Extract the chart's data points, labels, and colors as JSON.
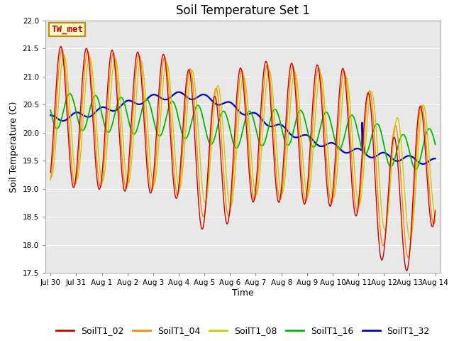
{
  "title": "Soil Temperature Set 1",
  "xlabel": "Time",
  "ylabel": "Soil Temperature (C)",
  "ylim": [
    17.5,
    22.0
  ],
  "series_colors": {
    "SoilT1_02": "#cc0000",
    "SoilT1_04": "#ff8800",
    "SoilT1_08": "#cccc00",
    "SoilT1_16": "#00bb00",
    "SoilT1_32": "#0000cc"
  },
  "series_linewidths": {
    "SoilT1_02": 1.0,
    "SoilT1_04": 1.0,
    "SoilT1_08": 1.0,
    "SoilT1_16": 1.3,
    "SoilT1_32": 1.6
  },
  "annotation_text": "TW_met",
  "annotation_color": "#cc0000",
  "annotation_bg": "#ffffcc",
  "annotation_border": "#cc8800",
  "x_tick_labels": [
    "Jul 30",
    "Jul 31",
    "Aug 1",
    "Aug 2",
    "Aug 3",
    "Aug 4",
    "Aug 5",
    "Aug 6",
    "Aug 7",
    "Aug 8",
    "Aug 9",
    "Aug 10",
    "Aug 11",
    "Aug 12",
    "Aug 13",
    "Aug 14"
  ],
  "x_tick_positions": [
    0,
    1,
    2,
    3,
    4,
    5,
    6,
    7,
    8,
    9,
    10,
    11,
    12,
    13,
    14,
    15
  ],
  "background_color": "#ffffff",
  "plot_bg_color": "#e8e8e8",
  "grid_color": "#ffffff",
  "title_fontsize": 12,
  "axis_label_fontsize": 9,
  "tick_fontsize": 7.5,
  "legend_fontsize": 9
}
